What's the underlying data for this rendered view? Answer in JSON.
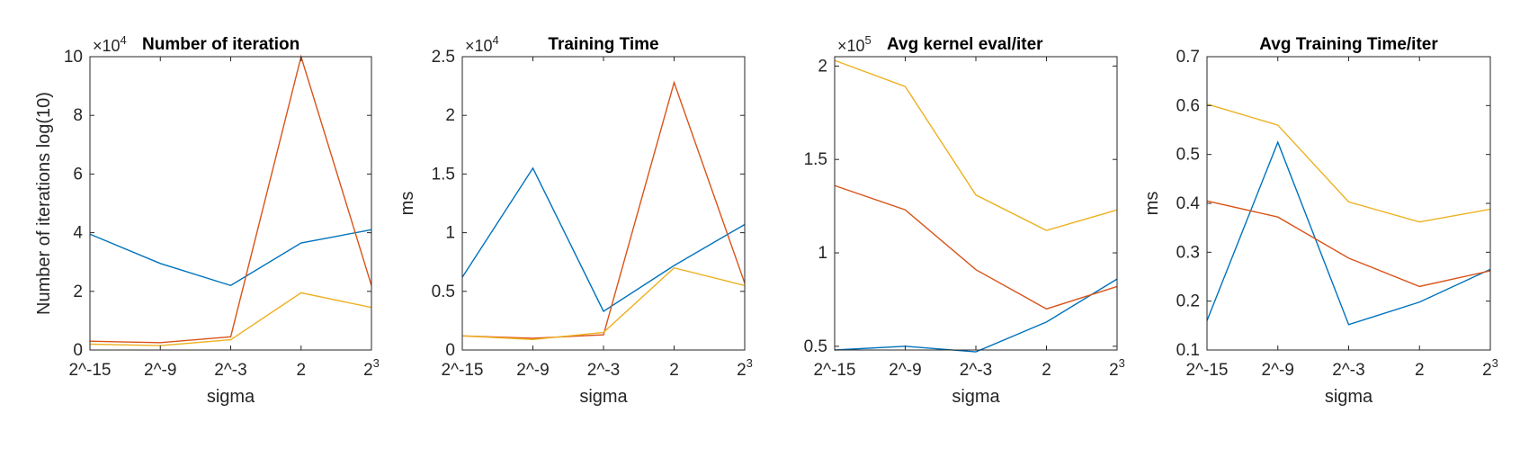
{
  "chart_data": [
    {
      "type": "line",
      "title": "Number of iteration",
      "xlabel": "sigma",
      "ylabel": "Number of iterations log(10)",
      "multiplier": "×10",
      "multiplier_exp": "4",
      "x_categories": [
        {
          "base": "2^-15",
          "exp": ""
        },
        {
          "base": "2^-9",
          "exp": ""
        },
        {
          "base": "2^-3",
          "exp": ""
        },
        {
          "base": "2",
          "exp": ""
        },
        {
          "base": "2",
          "exp": "3"
        }
      ],
      "ylim": [
        0,
        10
      ],
      "yticks": [
        0,
        2,
        4,
        6,
        8,
        10
      ],
      "ytick_labels": [
        "0",
        "2",
        "4",
        "6",
        "8",
        "10"
      ],
      "grid": false,
      "series": [
        {
          "color": "#0072BD",
          "values": [
            3.95,
            2.95,
            2.2,
            3.65,
            4.1
          ]
        },
        {
          "color": "#D95319",
          "values": [
            0.3,
            0.25,
            0.45,
            10.0,
            2.2
          ]
        },
        {
          "color": "#EDB120",
          "values": [
            0.2,
            0.15,
            0.35,
            1.95,
            1.45
          ]
        }
      ]
    },
    {
      "type": "line",
      "title": "Training Time",
      "xlabel": "sigma",
      "ylabel": "ms",
      "multiplier": "×10",
      "multiplier_exp": "4",
      "x_categories": [
        {
          "base": "2^-15",
          "exp": ""
        },
        {
          "base": "2^-9",
          "exp": ""
        },
        {
          "base": "2^-3",
          "exp": ""
        },
        {
          "base": "2",
          "exp": ""
        },
        {
          "base": "2",
          "exp": "3"
        }
      ],
      "ylim": [
        0,
        2.5
      ],
      "yticks": [
        0,
        0.5,
        1,
        1.5,
        2,
        2.5
      ],
      "ytick_labels": [
        "0",
        "0.5",
        "1",
        "1.5",
        "2",
        "2.5"
      ],
      "grid": false,
      "series": [
        {
          "color": "#0072BD",
          "values": [
            0.62,
            1.55,
            0.33,
            0.72,
            1.07
          ]
        },
        {
          "color": "#D95319",
          "values": [
            0.12,
            0.1,
            0.13,
            2.28,
            0.57
          ]
        },
        {
          "color": "#EDB120",
          "values": [
            0.12,
            0.09,
            0.15,
            0.7,
            0.55
          ]
        }
      ]
    },
    {
      "type": "line",
      "title": "Avg kernel eval/iter",
      "xlabel": "sigma",
      "ylabel": "",
      "multiplier": "×10",
      "multiplier_exp": "5",
      "x_categories": [
        {
          "base": "2^-15",
          "exp": ""
        },
        {
          "base": "2^-9",
          "exp": ""
        },
        {
          "base": "2^-3",
          "exp": ""
        },
        {
          "base": "2",
          "exp": ""
        },
        {
          "base": "2",
          "exp": "3"
        }
      ],
      "ylim": [
        0.48,
        2.05
      ],
      "yticks": [
        0.5,
        1,
        1.5,
        2
      ],
      "ytick_labels": [
        "0.5",
        "1",
        "1.5",
        "2"
      ],
      "grid": false,
      "series": [
        {
          "color": "#0072BD",
          "values": [
            0.48,
            0.5,
            0.47,
            0.63,
            0.86
          ]
        },
        {
          "color": "#D95319",
          "values": [
            1.36,
            1.23,
            0.91,
            0.7,
            0.82
          ]
        },
        {
          "color": "#EDB120",
          "values": [
            2.03,
            1.89,
            1.31,
            1.12,
            1.23
          ]
        }
      ]
    },
    {
      "type": "line",
      "title": "Avg Training Time/iter",
      "xlabel": "sigma",
      "ylabel": "ms",
      "multiplier": "",
      "multiplier_exp": "",
      "x_categories": [
        {
          "base": "2^-15",
          "exp": ""
        },
        {
          "base": "2^-9",
          "exp": ""
        },
        {
          "base": "2^-3",
          "exp": ""
        },
        {
          "base": "2",
          "exp": ""
        },
        {
          "base": "2",
          "exp": "3"
        }
      ],
      "ylim": [
        0.1,
        0.7
      ],
      "yticks": [
        0.1,
        0.2,
        0.3,
        0.4,
        0.5,
        0.6,
        0.7
      ],
      "ytick_labels": [
        "0.1",
        "0.2",
        "0.3",
        "0.4",
        "0.5",
        "0.6",
        "0.7"
      ],
      "grid": false,
      "series": [
        {
          "color": "#0072BD",
          "values": [
            0.16,
            0.525,
            0.152,
            0.198,
            0.265
          ]
        },
        {
          "color": "#D95319",
          "values": [
            0.405,
            0.372,
            0.288,
            0.23,
            0.262
          ]
        },
        {
          "color": "#EDB120",
          "values": [
            0.603,
            0.56,
            0.403,
            0.362,
            0.388
          ]
        }
      ]
    }
  ]
}
